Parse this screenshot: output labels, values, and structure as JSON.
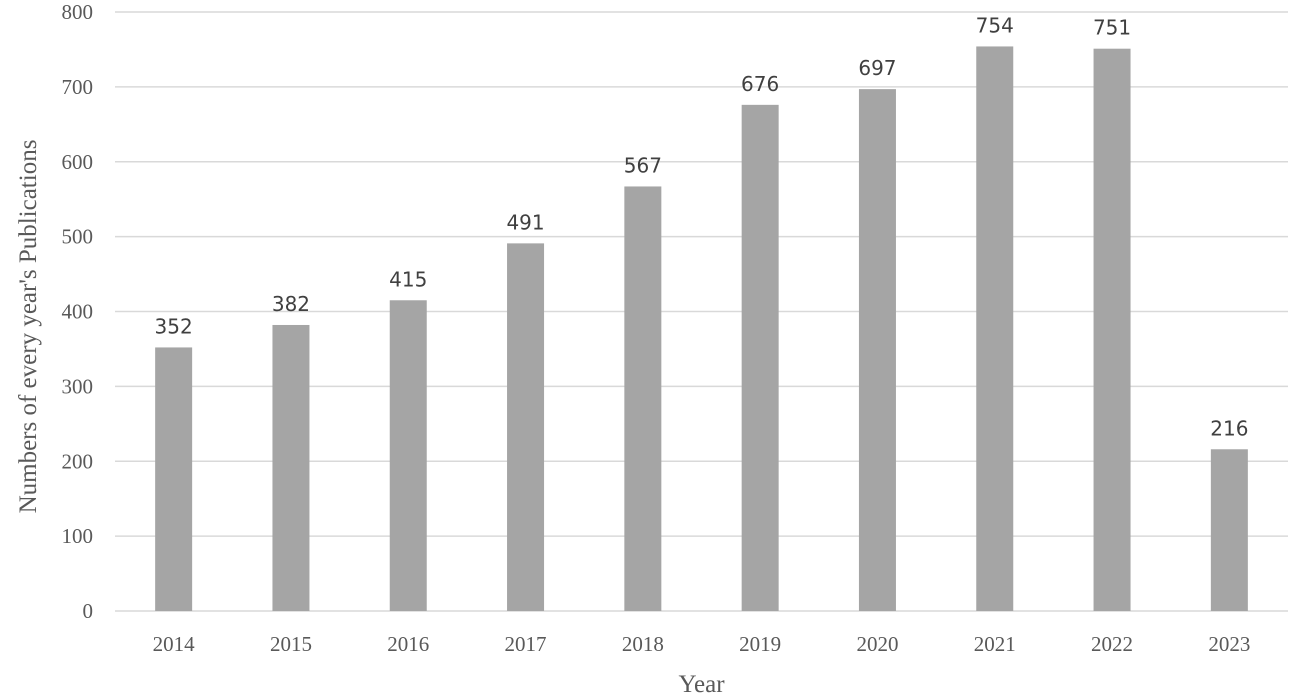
{
  "chart_data": {
    "type": "bar",
    "categories": [
      "2014",
      "2015",
      "2016",
      "2017",
      "2018",
      "2019",
      "2020",
      "2021",
      "2022",
      "2023"
    ],
    "values": [
      352,
      382,
      415,
      491,
      567,
      676,
      697,
      754,
      751,
      216
    ],
    "data_labels": [
      "352",
      "382",
      "415",
      "491",
      "567",
      "676",
      "697",
      "754",
      "751",
      "216"
    ],
    "xlabel": "Year",
    "ylabel": "Numbers of every year's Publications",
    "ylim": [
      0,
      800
    ],
    "yticks": [
      0,
      100,
      200,
      300,
      400,
      500,
      600,
      700,
      800
    ],
    "ytick_labels": [
      "0",
      "100",
      "200",
      "300",
      "400",
      "500",
      "600",
      "700",
      "800"
    ],
    "grid": "horizontal",
    "legend": "none",
    "colors": {
      "bar": "#a5a5a5",
      "grid": "#d9d9d9"
    }
  }
}
